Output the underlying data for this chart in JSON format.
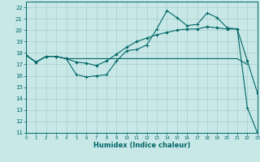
{
  "xlabel": "Humidex (Indice chaleur)",
  "background_color": "#c8e8e8",
  "grid_color": "#aacccc",
  "line_color": "#006666",
  "xlim": [
    0,
    23
  ],
  "ylim": [
    11,
    22.5
  ],
  "xticks": [
    0,
    1,
    2,
    3,
    4,
    5,
    6,
    7,
    8,
    9,
    10,
    11,
    12,
    13,
    14,
    15,
    16,
    17,
    18,
    19,
    20,
    21,
    22,
    23
  ],
  "yticks": [
    11,
    12,
    13,
    14,
    15,
    16,
    17,
    18,
    19,
    20,
    21,
    22
  ],
  "line1_x": [
    0,
    1,
    2,
    3,
    4,
    5,
    6,
    7,
    8,
    9,
    10,
    11,
    12,
    13,
    14,
    15,
    16,
    17,
    18,
    19,
    20,
    21,
    22,
    23
  ],
  "line1_y": [
    17.8,
    17.2,
    17.7,
    17.7,
    17.5,
    16.1,
    15.9,
    16.0,
    16.1,
    17.3,
    18.2,
    18.3,
    18.7,
    20.1,
    21.7,
    21.1,
    20.4,
    20.5,
    21.5,
    21.1,
    20.2,
    20.1,
    13.2,
    11.0
  ],
  "line2_x": [
    0,
    1,
    2,
    3,
    4,
    5,
    6,
    7,
    8,
    9,
    10,
    11,
    12,
    13,
    14,
    15,
    16,
    17,
    18,
    19,
    20,
    21,
    22,
    23
  ],
  "line2_y": [
    17.8,
    17.2,
    17.7,
    17.7,
    17.5,
    17.5,
    17.5,
    17.5,
    17.5,
    17.5,
    17.5,
    17.5,
    17.5,
    17.5,
    17.5,
    17.5,
    17.5,
    17.5,
    17.5,
    17.5,
    17.5,
    17.5,
    17.0,
    null
  ],
  "line3_x": [
    0,
    1,
    2,
    3,
    4,
    5,
    6,
    7,
    8,
    9,
    10,
    11,
    12,
    13,
    14,
    15,
    16,
    17,
    18,
    19,
    20,
    21,
    22,
    23
  ],
  "line3_y": [
    17.8,
    17.2,
    17.7,
    17.7,
    17.5,
    17.2,
    17.1,
    16.9,
    17.3,
    17.9,
    18.5,
    19.0,
    19.3,
    19.6,
    19.8,
    20.0,
    20.1,
    20.1,
    20.3,
    20.2,
    20.1,
    20.1,
    17.3,
    14.5
  ]
}
